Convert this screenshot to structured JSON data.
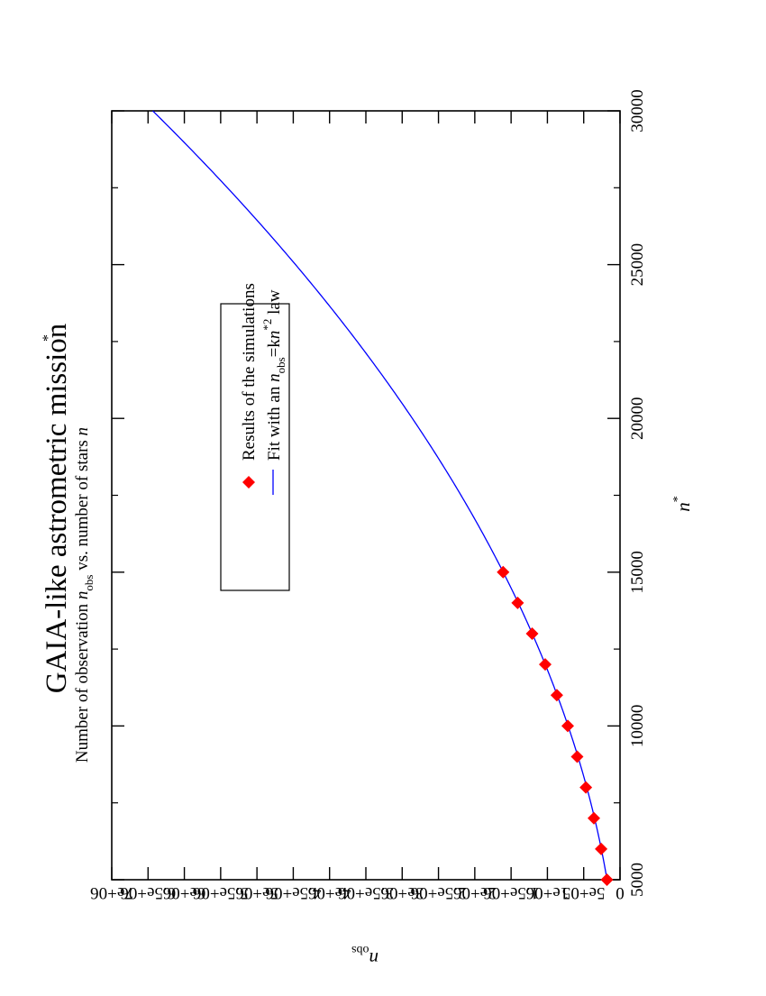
{
  "chart_data": {
    "type": "line",
    "title": "GAIA-like astrometric mission",
    "subtitle": {
      "pre": "Number of observation ",
      "nobs_n": "n",
      "nobs_sub": "obs",
      "mid": " vs. number of stars ",
      "n": "n",
      "star": "*"
    },
    "xlabel": {
      "n": "n",
      "star": "*"
    },
    "ylabel": {
      "n": "n",
      "sub": "obs"
    },
    "xlim": [
      5000,
      30000
    ],
    "ylim": [
      0,
      7000000
    ],
    "x_ticks": [
      5000,
      10000,
      15000,
      20000,
      25000,
      30000
    ],
    "x_tick_labels": [
      "5000",
      "10000",
      "15000",
      "20000",
      "25000",
      "30000"
    ],
    "y_ticks": [
      0,
      500000,
      1000000,
      1500000,
      2000000,
      2500000,
      3000000,
      3500000,
      4000000,
      4500000,
      5000000,
      5500000,
      6000000,
      6500000,
      7000000
    ],
    "y_tick_labels": [
      "0",
      "5e+05",
      "1e+06",
      "1.5e+06",
      "2e+06",
      "2.5e+06",
      "3e+06",
      "3.5e+06",
      "4e+06",
      "4.5e+06",
      "5e+06",
      "5.5e+06",
      "6e+06",
      "6.5e+06",
      "7e+06"
    ],
    "x_minor_ticks": [
      7500,
      12500,
      17500,
      22500,
      27500
    ],
    "grid": false,
    "legend_position": "top-right",
    "series": [
      {
        "name": "Results of the simulations",
        "kind": "scatter",
        "marker": "diamond",
        "color": "#ff0000",
        "x": [
          5000,
          6000,
          7000,
          8000,
          9000,
          10000,
          11000,
          12000,
          13000,
          14000,
          15000
        ],
        "y": [
          180000,
          260000,
          360000,
          470000,
          590000,
          720000,
          870000,
          1030000,
          1210000,
          1410000,
          1610000
        ]
      },
      {
        "name": "Fit with an nobs=kn*2 law",
        "kind": "line",
        "color": "#0000ff",
        "k": 0.00715
      }
    ],
    "legend": [
      {
        "marker": "diamond",
        "color": "#ff0000",
        "text": "Results of the simulations"
      },
      {
        "marker": "line",
        "color": "#0000ff",
        "text_pre": "Fit with an ",
        "n1": "n",
        "sub": "obs",
        "eq": "=k",
        "n2": "n",
        "sup": "*2",
        "text_post": " law"
      }
    ]
  }
}
